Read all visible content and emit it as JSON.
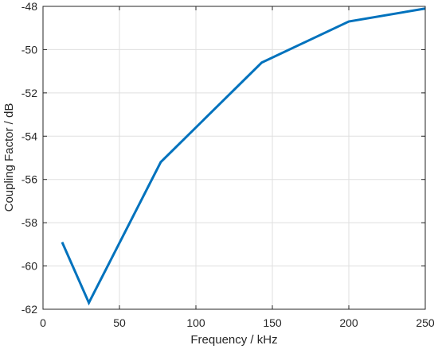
{
  "chart_data": {
    "type": "line",
    "title": "",
    "xlabel": "Frequency / kHz",
    "ylabel": "Coupling Factor / dB",
    "xlim": [
      0,
      250
    ],
    "ylim": [
      -62,
      -48
    ],
    "xticks": [
      0,
      50,
      100,
      150,
      200,
      250
    ],
    "yticks": [
      -62,
      -60,
      -58,
      -56,
      -54,
      -52,
      -50,
      -48
    ],
    "xtick_labels": [
      "0",
      "50",
      "100",
      "150",
      "200",
      "250"
    ],
    "ytick_labels": [
      "-62",
      "-60",
      "-58",
      "-56",
      "-54",
      "-52",
      "-50",
      "-48"
    ],
    "grid": true,
    "legend": "none",
    "series": [
      {
        "color": "#0072BD",
        "x": [
          12.5,
          30,
          77,
          143,
          200,
          250
        ],
        "y": [
          -58.9,
          -61.7,
          -55.2,
          -50.6,
          -48.7,
          -48.1
        ]
      }
    ]
  }
}
